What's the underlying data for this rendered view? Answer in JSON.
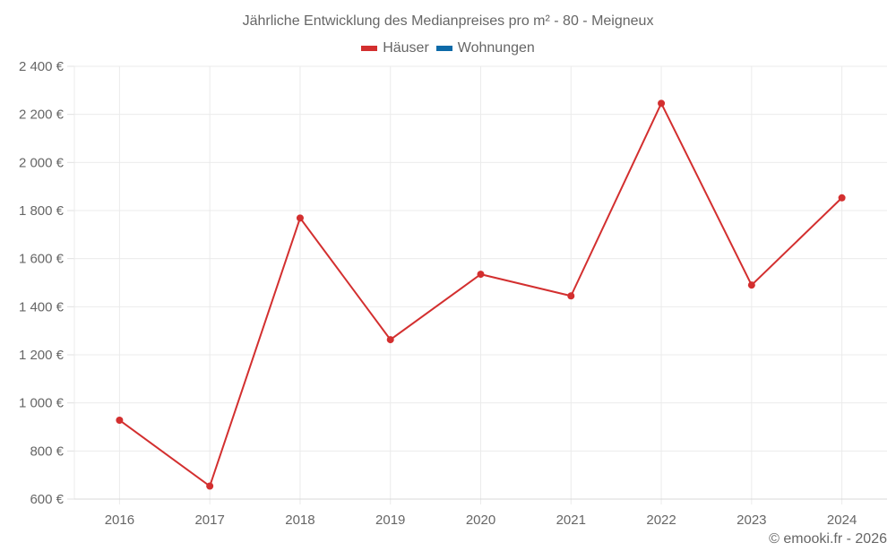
{
  "chart_data": {
    "type": "line",
    "title": "Jährliche Entwicklung des Medianpreises pro m² - 80 - Meigneux",
    "xlabel": "",
    "ylabel": "",
    "categories": [
      "2016",
      "2017",
      "2018",
      "2019",
      "2020",
      "2021",
      "2022",
      "2023",
      "2024"
    ],
    "series": [
      {
        "name": "Häuser",
        "color": "#d32f2f",
        "values": [
          928,
          654,
          1769,
          1263,
          1535,
          1445,
          2246,
          1490,
          1853
        ]
      },
      {
        "name": "Wohnungen",
        "color": "#0d6aa8",
        "values": []
      }
    ],
    "ylim": [
      600,
      2400
    ],
    "yticks": [
      600,
      800,
      1000,
      1200,
      1400,
      1600,
      1800,
      2000,
      2200,
      2400
    ],
    "ytick_labels": [
      "600 €",
      "800 €",
      "1 000 €",
      "1 200 €",
      "1 400 €",
      "1 600 €",
      "1 800 €",
      "2 000 €",
      "2 200 €",
      "2 400 €"
    ],
    "grid": true,
    "legend_position": "top"
  },
  "legend": [
    {
      "label": "Häuser",
      "color": "#d32f2f"
    },
    {
      "label": "Wohnungen",
      "color": "#0d6aa8"
    }
  ],
  "credit": "© emooki.fr - 2026"
}
